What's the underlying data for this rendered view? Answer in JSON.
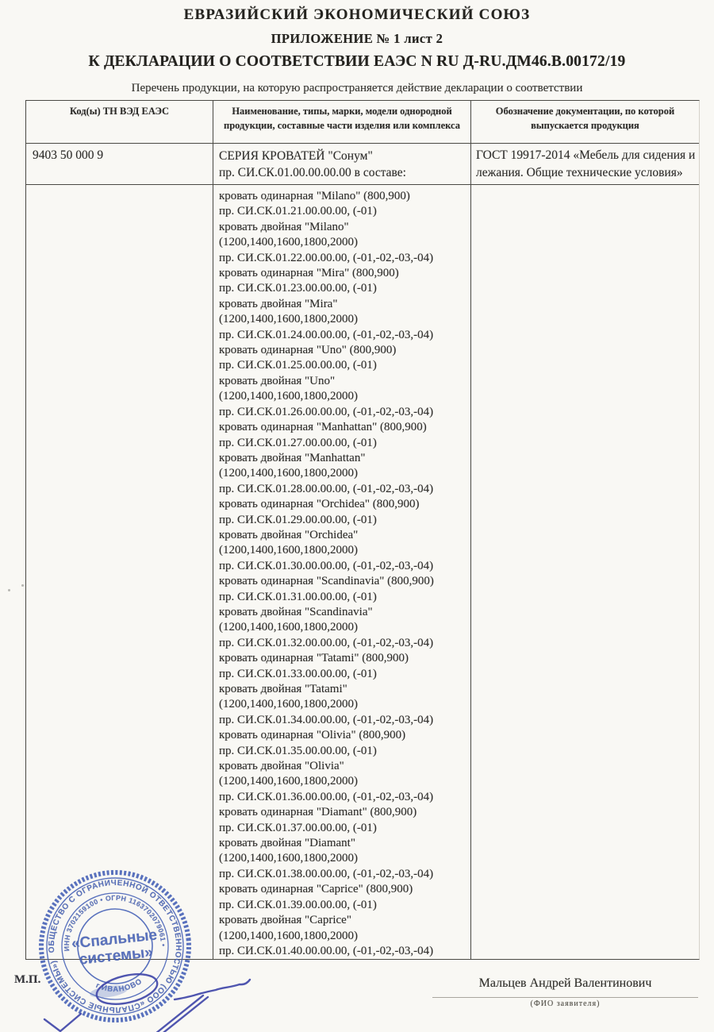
{
  "header": {
    "line1": "ЕВРАЗИЙСКИЙ ЭКОНОМИЧЕСКИЙ СОЮЗ",
    "line2": "ПРИЛОЖЕНИЕ № 1 лист 2",
    "line3": "К ДЕКЛАРАЦИИ О СООТВЕТСТВИИ ЕАЭС N RU Д-RU.ДМ46.B.00172/19"
  },
  "caption": "Перечень продукции, на которую распространяется действие декларации о соответствии",
  "table": {
    "columns": [
      "Код(ы) ТН ВЭД ЕАЭС",
      "Наименование, типы, марки, модели однородной продукции, составные части изделия или комплекса",
      "Обозначение документации, по которой выпускается продукция"
    ],
    "row1": {
      "code": "9403 50 000 9",
      "name_lines": [
        "СЕРИЯ КРОВАТЕЙ \"Сонум\"",
        "пр. СИ.СК.01.00.00.00.00 в составе:"
      ],
      "doc": "ГОСТ 19917-2014 «Мебель для сидения и лежания. Общие технические условия»"
    },
    "row2": {
      "code": "",
      "doc": "",
      "name_lines": [
        "кровать одинарная \"Milano\" (800,900)",
        "пр. СИ.СК.01.21.00.00.00, (-01)",
        "кровать двойная \"Milano\"",
        "(1200,1400,1600,1800,2000)",
        "пр. СИ.СК.01.22.00.00.00, (-01,-02,-03,-04)",
        "кровать одинарная \"Mira\" (800,900)",
        "пр. СИ.СК.01.23.00.00.00, (-01)",
        "кровать двойная \"Mira\"",
        "(1200,1400,1600,1800,2000)",
        "пр. СИ.СК.01.24.00.00.00, (-01,-02,-03,-04)",
        "кровать одинарная \"Uno\" (800,900)",
        "пр. СИ.СК.01.25.00.00.00, (-01)",
        "кровать двойная \"Uno\"",
        "(1200,1400,1600,1800,2000)",
        "пр. СИ.СК.01.26.00.00.00, (-01,-02,-03,-04)",
        "кровать одинарная \"Manhattan\" (800,900)",
        "пр. СИ.СК.01.27.00.00.00, (-01)",
        "кровать двойная \"Manhattan\"",
        "(1200,1400,1600,1800,2000)",
        "пр. СИ.СК.01.28.00.00.00, (-01,-02,-03,-04)",
        "кровать одинарная \"Orchidea\" (800,900)",
        "пр. СИ.СК.01.29.00.00.00, (-01)",
        "кровать двойная \"Orchidea\"",
        "(1200,1400,1600,1800,2000)",
        "пр. СИ.СК.01.30.00.00.00, (-01,-02,-03,-04)",
        "кровать одинарная \"Scandinavia\" (800,900)",
        "пр. СИ.СК.01.31.00.00.00, (-01)",
        "кровать двойная \"Scandinavia\"",
        "(1200,1400,1600,1800,2000)",
        "пр. СИ.СК.01.32.00.00.00, (-01,-02,-03,-04)",
        "кровать одинарная \"Tatami\" (800,900)",
        "пр. СИ.СК.01.33.00.00.00, (-01)",
        "кровать двойная \"Tatami\"",
        "(1200,1400,1600,1800,2000)",
        "пр. СИ.СК.01.34.00.00.00, (-01,-02,-03,-04)",
        "кровать одинарная \"Olivia\" (800,900)",
        "пр. СИ.СК.01.35.00.00.00, (-01)",
        "кровать двойная \"Olivia\"",
        "(1200,1400,1600,1800,2000)",
        "пр. СИ.СК.01.36.00.00.00, (-01,-02,-03,-04)",
        "кровать одинарная \"Diamant\" (800,900)",
        "пр. СИ.СК.01.37.00.00.00, (-01)",
        "кровать двойная \"Diamant\"",
        "(1200,1400,1600,1800,2000)",
        "пр. СИ.СК.01.38.00.00.00, (-01,-02,-03,-04)",
        "кровать одинарная \"Caprice\" (800,900)",
        "пр. СИ.СК.01.39.00.00.00, (-01)",
        "кровать двойная \"Caprice\"",
        "(1200,1400,1600,1800,2000)",
        "пр. СИ.СК.01.40.00.00.00, (-01,-02,-03,-04)"
      ]
    }
  },
  "footer": {
    "mp_label": "М.П.",
    "signer_name": "Мальцев Андрей Валентинович",
    "signer_caption": "(ФИО заявителя)"
  },
  "stamp": {
    "ring_outer": "ОБЩЕСТВО С ОГРАНИЧЕННОЙ ОТВЕТСТВЕННОСТЬЮ (ООО «СПАЛЬНЫЕ СИСТЕМЫ»)",
    "ring_inner": "ИНН 3702159100 • ОГРН 1163702079061 •",
    "ring_bottom": "г.ИВАНОВО",
    "center_line1": "«Спальные",
    "center_line2": "системы»"
  },
  "colors": {
    "paper": "#f9f8f4",
    "ink": "#2e2d2b",
    "stamp_blue": "#3f5cb5",
    "signature_blue": "#3d44a8"
  }
}
